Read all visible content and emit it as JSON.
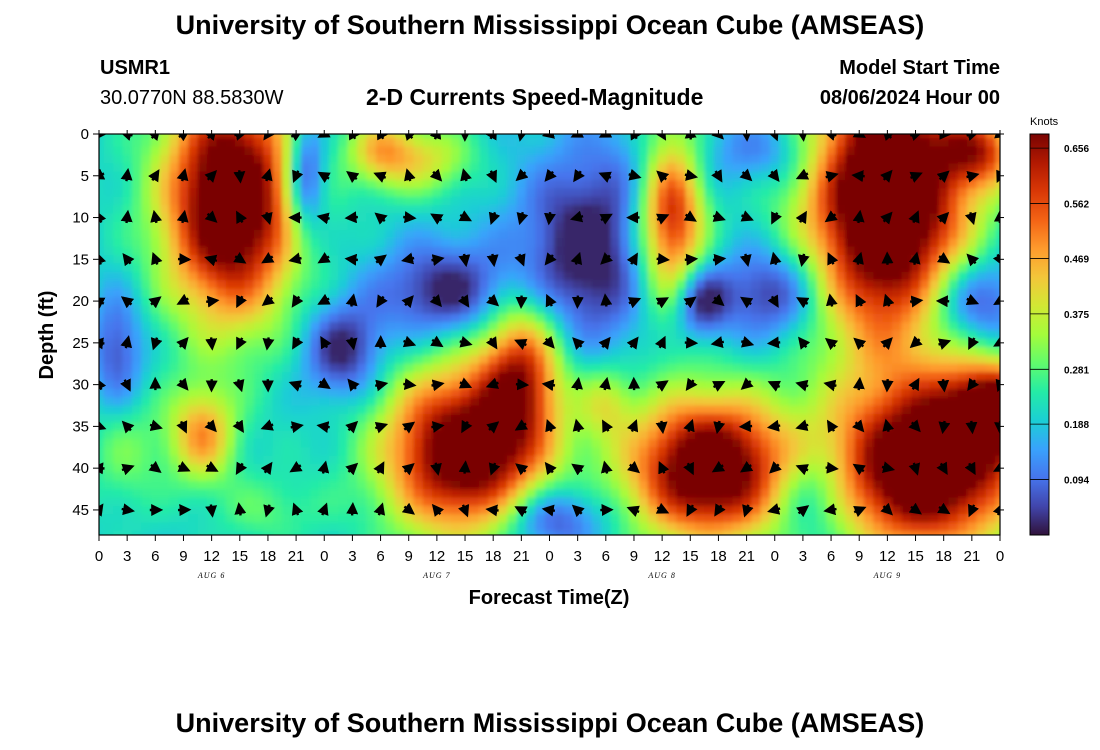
{
  "title": "University of Southern Mississippi Ocean Cube (AMSEAS)",
  "footer_title": "University of Southern Mississippi Ocean Cube (AMSEAS)",
  "station": {
    "id": "USMR1",
    "coords": "30.0770N  88.5830W"
  },
  "subtitle": "2-D Currents Speed-Magnitude",
  "model_start": {
    "label": "Model Start Time",
    "value": "08/06/2024 Hour 00"
  },
  "colors": {
    "colormap": [
      "#30123b",
      "#4145ab",
      "#4675ed",
      "#39a2fc",
      "#1bcfd4",
      "#24eca6",
      "#61fc6c",
      "#a4fc3b",
      "#d1e834",
      "#f3c63a",
      "#fe9b2d",
      "#f36315",
      "#d93806",
      "#b11901",
      "#7a0403"
    ],
    "arrow": "#000000",
    "axis": "#000000"
  },
  "chart_data": {
    "type": "heatmap",
    "title": "2-D Currents Speed-Magnitude",
    "xlabel": "Forecast Time(Z)",
    "ylabel": "Depth (ft)",
    "xlim": [
      0,
      96
    ],
    "ylim": [
      48,
      0
    ],
    "x_ticks": [
      0,
      3,
      6,
      9,
      12,
      15,
      18,
      21,
      24,
      27,
      30,
      33,
      36,
      39,
      42,
      45,
      48,
      51,
      54,
      57,
      60,
      63,
      66,
      69,
      72,
      75,
      78,
      81,
      84,
      87,
      90,
      93,
      96
    ],
    "x_tick_labels": [
      "0",
      "3",
      "6",
      "9",
      "12",
      "15",
      "18",
      "21",
      "0",
      "3",
      "6",
      "9",
      "12",
      "15",
      "18",
      "21",
      "0",
      "3",
      "6",
      "9",
      "12",
      "15",
      "18",
      "21",
      "0",
      "3",
      "6",
      "9",
      "12",
      "15",
      "18",
      "21",
      "0"
    ],
    "y_ticks": [
      0,
      5,
      10,
      15,
      20,
      25,
      30,
      35,
      40,
      45
    ],
    "y_tick_labels": [
      "0",
      "5",
      "10",
      "15",
      "20",
      "25",
      "30",
      "35",
      "40",
      "45"
    ],
    "day_labels": [
      {
        "x": 12,
        "label": "AUG 6"
      },
      {
        "x": 36,
        "label": "AUG 7"
      },
      {
        "x": 60,
        "label": "AUG 8"
      },
      {
        "x": 84,
        "label": "AUG 9"
      }
    ],
    "colorbar": {
      "unit": "Knots",
      "range": [
        0,
        0.68
      ],
      "ticks": [
        0.094,
        0.188,
        0.281,
        0.375,
        0.469,
        0.562,
        0.656
      ],
      "tick_labels": [
        "0.094",
        "0.188",
        "0.281",
        "0.375",
        "0.469",
        "0.562",
        "0.656"
      ]
    },
    "arrow_times": [
      0,
      3,
      6,
      9,
      12,
      15,
      18,
      21,
      24,
      27,
      30,
      33,
      36,
      39,
      42,
      45,
      48,
      51,
      54,
      57,
      60,
      63,
      66,
      69,
      72,
      75,
      78,
      81,
      84,
      87,
      90,
      93,
      96
    ],
    "arrow_depths": [
      0,
      5,
      10,
      15,
      20,
      25,
      30,
      35,
      40,
      45
    ],
    "speed_blobs": [
      {
        "t": 14,
        "d": 8,
        "st": 5,
        "sd": 10,
        "a": 0.62
      },
      {
        "t": 11,
        "d": 36,
        "st": 2.5,
        "sd": 4,
        "a": 0.28
      },
      {
        "t": 39,
        "d": 38,
        "st": 6,
        "sd": 7,
        "a": 0.58
      },
      {
        "t": 45,
        "d": 28,
        "st": 3,
        "sd": 6,
        "a": 0.35
      },
      {
        "t": 30,
        "d": 2,
        "st": 2.5,
        "sd": 3,
        "a": 0.22
      },
      {
        "t": 35,
        "d": 3,
        "st": 3.5,
        "sd": 3,
        "a": 0.18
      },
      {
        "t": 61,
        "d": 9,
        "st": 2.5,
        "sd": 8,
        "a": 0.45
      },
      {
        "t": 65,
        "d": 40,
        "st": 6,
        "sd": 6,
        "a": 0.6
      },
      {
        "t": 84,
        "d": 8,
        "st": 6,
        "sd": 12,
        "a": 0.68
      },
      {
        "t": 88,
        "d": 40,
        "st": 7,
        "sd": 7,
        "a": 0.62
      },
      {
        "t": 96,
        "d": 33,
        "st": 4,
        "sd": 4,
        "a": 0.45
      },
      {
        "t": 94,
        "d": 2,
        "st": 3,
        "sd": 3,
        "a": 0.3
      },
      {
        "t": 54,
        "d": 32,
        "st": 2,
        "sd": 3,
        "a": 0.15
      },
      {
        "t": 3,
        "d": 38,
        "st": 3,
        "sd": 5,
        "a": 0.1
      },
      {
        "t": 18,
        "d": 45,
        "st": 4,
        "sd": 3,
        "a": 0.08
      }
    ],
    "slow_pools": [
      {
        "t": 22,
        "d": 5,
        "st": 1.5,
        "sd": 5,
        "a": 0.25
      },
      {
        "t": 26,
        "d": 26,
        "st": 3,
        "sd": 4,
        "a": 0.2
      },
      {
        "t": 37,
        "d": 19,
        "st": 5,
        "sd": 4,
        "a": 0.2
      },
      {
        "t": 52,
        "d": 14,
        "st": 5,
        "sd": 8,
        "a": 0.22
      },
      {
        "t": 64,
        "d": 20,
        "st": 2,
        "sd": 3,
        "a": 0.22
      },
      {
        "t": 72,
        "d": 19,
        "st": 4,
        "sd": 4,
        "a": 0.2
      },
      {
        "t": 93,
        "d": 20,
        "st": 4,
        "sd": 4,
        "a": 0.22
      },
      {
        "t": 48,
        "d": 46,
        "st": 4,
        "sd": 3,
        "a": 0.2
      },
      {
        "t": 2,
        "d": 26,
        "st": 2,
        "sd": 5,
        "a": 0.15
      },
      {
        "t": 61,
        "d": 3,
        "st": 4,
        "sd": 4,
        "a": 0.1
      },
      {
        "t": 76,
        "d": 43,
        "st": 3,
        "sd": 4,
        "a": 0.15
      },
      {
        "t": 72,
        "d": 2,
        "st": 4,
        "sd": 3,
        "a": 0.12
      }
    ]
  }
}
